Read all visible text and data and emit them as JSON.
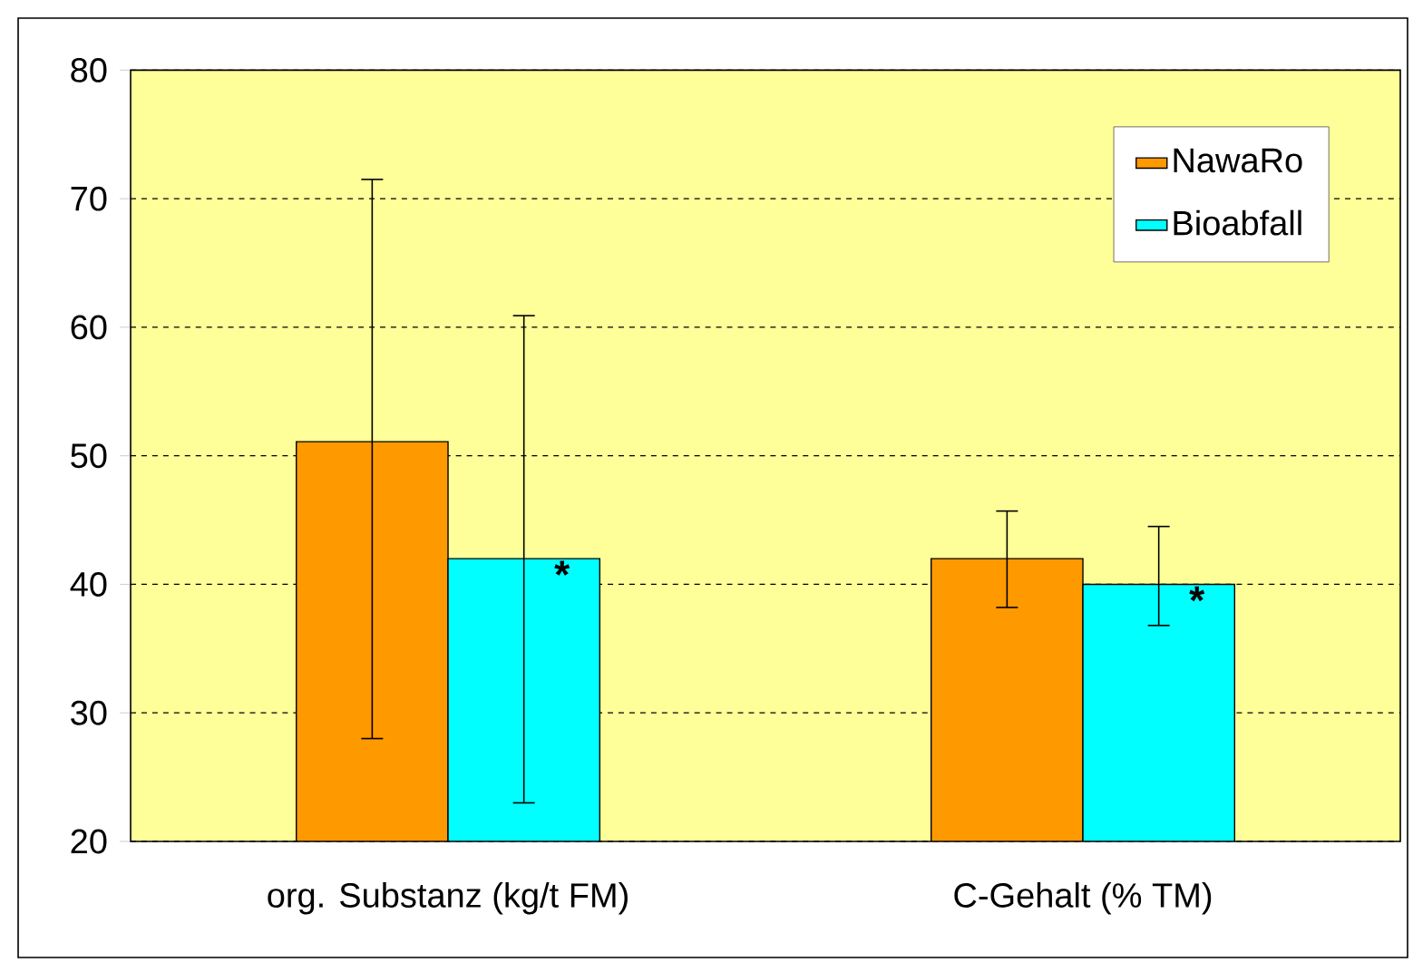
{
  "chart_data": {
    "type": "bar",
    "categories": [
      "org. Substanz (kg/t FM)",
      "C-Gehalt (% TM)"
    ],
    "series": [
      {
        "name": "NawaRo",
        "color": "#ff9900",
        "values": [
          51.1,
          42.0
        ],
        "errors": [
          [
            28.0,
            71.5
          ],
          [
            38.2,
            45.7
          ]
        ]
      },
      {
        "name": "Bioabfall",
        "color": "#00ffff",
        "values": [
          42.0,
          40.0
        ],
        "errors": [
          [
            23.0,
            60.9
          ],
          [
            36.8,
            44.5
          ]
        ]
      }
    ],
    "ylim": [
      20,
      80
    ],
    "yticks": [
      20,
      30,
      40,
      50,
      60,
      70,
      80
    ],
    "grid": "y",
    "legend": "top right",
    "annotations": [
      {
        "text": "*",
        "x": "org. Substanz (kg/t FM)",
        "y": 42.0
      },
      {
        "text": "*",
        "x": "C-Gehalt (% TM)",
        "y": 40.0
      }
    ]
  }
}
